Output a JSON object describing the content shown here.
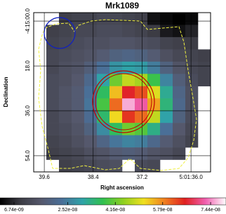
{
  "chart_data": {
    "type": "image",
    "title": "Mrk1089",
    "x_label": "Right ascension",
    "y_label": "Declination",
    "xlim": [
      39.86,
      35.52
    ],
    "xticks": [
      {
        "value": 39.6,
        "label": "39.6"
      },
      {
        "value": 38.4,
        "label": "38.4"
      },
      {
        "value": 37.2,
        "label": "37.2"
      },
      {
        "value": 36.0,
        "label": "5:01:36.0"
      }
    ],
    "ylim": [
      60.5,
      -3.4
    ],
    "yticks": [
      {
        "value": 0,
        "label": "-4:15:00.0"
      },
      {
        "value": 18,
        "label": "18.0"
      },
      {
        "value": 36,
        "label": "36.0"
      },
      {
        "value": 54,
        "label": "54.0"
      }
    ],
    "grid": true,
    "clim": [
      1.91e-09,
      7.97e-08
    ],
    "cticks": [
      {
        "value": 6.74e-09,
        "label": "6.74e-09"
      },
      {
        "value": 2.52e-08,
        "label": "2.52e-08"
      },
      {
        "value": 4.16e-08,
        "label": "4.16e-08"
      },
      {
        "value": 5.79e-08,
        "label": "5.79e-08"
      },
      {
        "value": 7.44e-08,
        "label": "7.44e-08"
      }
    ],
    "colormap": [
      "#000000",
      "#3c3c44",
      "#55586c",
      "#4a6f98",
      "#2fa3a8",
      "#30c050",
      "#8fd020",
      "#f0e020",
      "#f08020",
      "#e02020",
      "#f060b0",
      "#ffffff"
    ],
    "image": [
      [
        null,
        null,
        1e-08,
        1.1e-08,
        1.1e-08,
        1.2e-08,
        1.2e-08,
        1.1e-08,
        1e-08,
        4e-09,
        3e-09,
        2e-09,
        3e-09,
        null
      ],
      [
        null,
        1e-08,
        1.1e-08,
        1.2e-08,
        1.2e-08,
        1.3e-08,
        1.3e-08,
        1.2e-08,
        1.1e-08,
        9e-09,
        5e-09,
        4e-09,
        6e-09,
        null
      ],
      [
        null,
        1.1e-08,
        1.2e-08,
        1.3e-08,
        1.4e-08,
        1.4e-08,
        1.5e-08,
        1.5e-08,
        1.4e-08,
        1.3e-08,
        1.1e-08,
        1e-08,
        9e-09,
        null
      ],
      [
        null,
        1.2e-08,
        1.3e-08,
        1.4e-08,
        1.5e-08,
        1.7e-08,
        1.9e-08,
        2e-08,
        1.9e-08,
        1.7e-08,
        1.4e-08,
        1.2e-08,
        1.1e-08,
        1e-08
      ],
      [
        null,
        1.2e-08,
        1.4e-08,
        1.5e-08,
        1.8e-08,
        2.3e-08,
        2.8e-08,
        3e-08,
        2.9e-08,
        2.5e-08,
        1.9e-08,
        1.5e-08,
        1.2e-08,
        1.1e-08
      ],
      [
        null,
        1.3e-08,
        1.4e-08,
        1.6e-08,
        2.1e-08,
        3e-08,
        4.2e-08,
        4.8e-08,
        4.6e-08,
        3.8e-08,
        2.6e-08,
        1.8e-08,
        1.3e-08,
        1.1e-08
      ],
      [
        null,
        1.3e-08,
        1.5e-08,
        1.7e-08,
        2.3e-08,
        3.6e-08,
        5.4e-08,
        6.6e-08,
        6.2e-08,
        5e-08,
        3.2e-08,
        2e-08,
        1.4e-08,
        null
      ],
      [
        null,
        1.3e-08,
        1.5e-08,
        1.7e-08,
        2.4e-08,
        3.9e-08,
        6e-08,
        7.6e-08,
        7.2e-08,
        5.6e-08,
        3.4e-08,
        2.1e-08,
        1.4e-08,
        null
      ],
      [
        null,
        1.2e-08,
        1.4e-08,
        1.6e-08,
        2.2e-08,
        3.5e-08,
        5.2e-08,
        6.4e-08,
        6e-08,
        4.8e-08,
        3e-08,
        1.9e-08,
        1.3e-08,
        null
      ],
      [
        null,
        1.2e-08,
        1.3e-08,
        1.5e-08,
        1.9e-08,
        2.7e-08,
        3.6e-08,
        4.2e-08,
        4e-08,
        3.3e-08,
        2.3e-08,
        1.6e-08,
        1.2e-08,
        null
      ],
      [
        null,
        1.1e-08,
        1.2e-08,
        1.4e-08,
        1.6e-08,
        2e-08,
        2.4e-08,
        2.6e-08,
        2.5e-08,
        2.1e-08,
        1.7e-08,
        1.4e-08,
        1.1e-08,
        null
      ],
      [
        null,
        1e-08,
        1.1e-08,
        1.2e-08,
        1.4e-08,
        1.5e-08,
        1.7e-08,
        1.8e-08,
        1.7e-08,
        1.5e-08,
        1.4e-08,
        1.2e-08,
        null,
        null
      ],
      [
        null,
        null,
        1e-08,
        1.1e-08,
        1.2e-08,
        1.3e-08,
        1.4e-08,
        null,
        1.3e-08,
        1.2e-08,
        null,
        null,
        null,
        null
      ]
    ]
  }
}
